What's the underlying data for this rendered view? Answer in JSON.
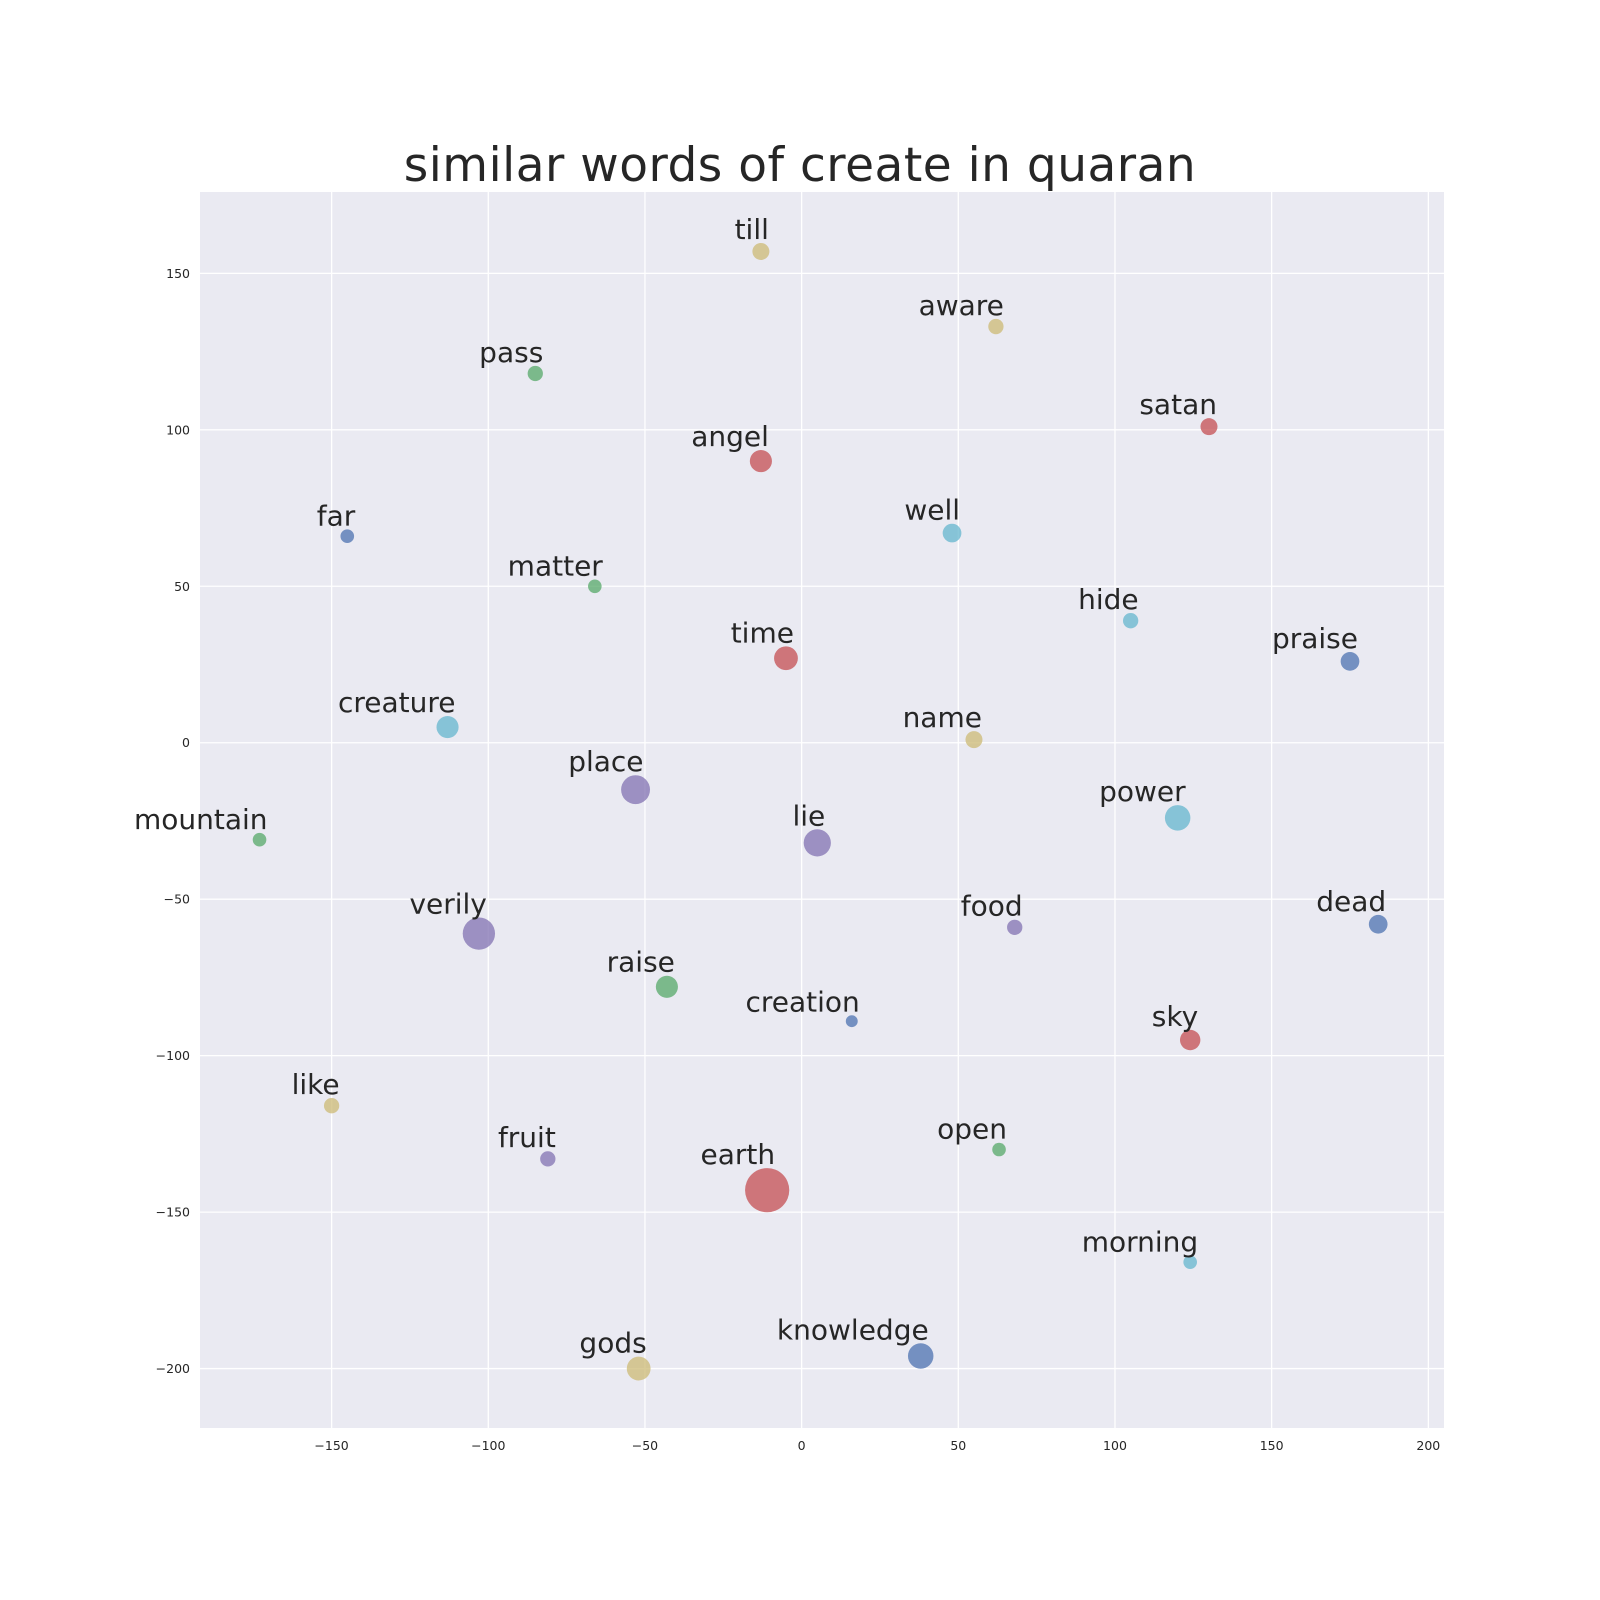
{
  "chart_data": {
    "type": "scatter",
    "title": "similar words of create in quaran",
    "xlabel": "",
    "ylabel": "",
    "xlim": [
      -192,
      205
    ],
    "ylim": [
      -219,
      176
    ],
    "xticks": [
      -150,
      -100,
      -50,
      0,
      50,
      100,
      150,
      200
    ],
    "yticks": [
      -200,
      -150,
      -100,
      -50,
      0,
      50,
      100,
      150
    ],
    "grid": true,
    "colors": {
      "background": "#EAEAF2",
      "grid": "#FFFFFF",
      "blue": "#4C72B0",
      "green": "#55A868",
      "red": "#C44E52",
      "purple": "#8172B2",
      "yellow": "#CCB974",
      "cyan": "#64B5CD"
    },
    "points": [
      {
        "label": "till",
        "x": -13,
        "y": 157,
        "size": 1.0,
        "color": "yellow"
      },
      {
        "label": "aware",
        "x": 62,
        "y": 133,
        "size": 0.9,
        "color": "yellow"
      },
      {
        "label": "pass",
        "x": -85,
        "y": 118,
        "size": 0.9,
        "color": "green"
      },
      {
        "label": "satan",
        "x": 130,
        "y": 101,
        "size": 1.0,
        "color": "red"
      },
      {
        "label": "angel",
        "x": -13,
        "y": 90,
        "size": 1.3,
        "color": "red"
      },
      {
        "label": "far",
        "x": -145,
        "y": 66,
        "size": 0.8,
        "color": "blue"
      },
      {
        "label": "well",
        "x": 48,
        "y": 67,
        "size": 1.1,
        "color": "cyan"
      },
      {
        "label": "matter",
        "x": -66,
        "y": 50,
        "size": 0.8,
        "color": "green"
      },
      {
        "label": "hide",
        "x": 105,
        "y": 39,
        "size": 0.9,
        "color": "cyan"
      },
      {
        "label": "time",
        "x": -5,
        "y": 27,
        "size": 1.4,
        "color": "red"
      },
      {
        "label": "praise",
        "x": 175,
        "y": 26,
        "size": 1.1,
        "color": "blue"
      },
      {
        "label": "creature",
        "x": -113,
        "y": 5,
        "size": 1.3,
        "color": "cyan"
      },
      {
        "label": "name",
        "x": 55,
        "y": 1,
        "size": 1.0,
        "color": "yellow"
      },
      {
        "label": "place",
        "x": -53,
        "y": -15,
        "size": 1.7,
        "color": "purple"
      },
      {
        "label": "power",
        "x": 120,
        "y": -24,
        "size": 1.5,
        "color": "cyan"
      },
      {
        "label": "mountain",
        "x": -173,
        "y": -31,
        "size": 0.8,
        "color": "green"
      },
      {
        "label": "lie",
        "x": 5,
        "y": -32,
        "size": 1.6,
        "color": "purple"
      },
      {
        "label": "food",
        "x": 68,
        "y": -59,
        "size": 0.9,
        "color": "purple"
      },
      {
        "label": "dead",
        "x": 184,
        "y": -58,
        "size": 1.1,
        "color": "blue"
      },
      {
        "label": "verily",
        "x": -103,
        "y": -61,
        "size": 1.9,
        "color": "purple"
      },
      {
        "label": "raise",
        "x": -43,
        "y": -78,
        "size": 1.3,
        "color": "green"
      },
      {
        "label": "creation",
        "x": 16,
        "y": -89,
        "size": 0.7,
        "color": "blue"
      },
      {
        "label": "sky",
        "x": 124,
        "y": -95,
        "size": 1.2,
        "color": "red"
      },
      {
        "label": "like",
        "x": -150,
        "y": -116,
        "size": 0.9,
        "color": "yellow"
      },
      {
        "label": "fruit",
        "x": -81,
        "y": -133,
        "size": 0.9,
        "color": "purple"
      },
      {
        "label": "open",
        "x": 63,
        "y": -130,
        "size": 0.8,
        "color": "green"
      },
      {
        "label": "earth",
        "x": -11,
        "y": -143,
        "size": 2.6,
        "color": "red"
      },
      {
        "label": "morning",
        "x": 124,
        "y": -166,
        "size": 0.8,
        "color": "cyan"
      },
      {
        "label": "gods",
        "x": -52,
        "y": -200,
        "size": 1.4,
        "color": "yellow"
      },
      {
        "label": "knowledge",
        "x": 38,
        "y": -196,
        "size": 1.5,
        "color": "blue"
      }
    ]
  }
}
